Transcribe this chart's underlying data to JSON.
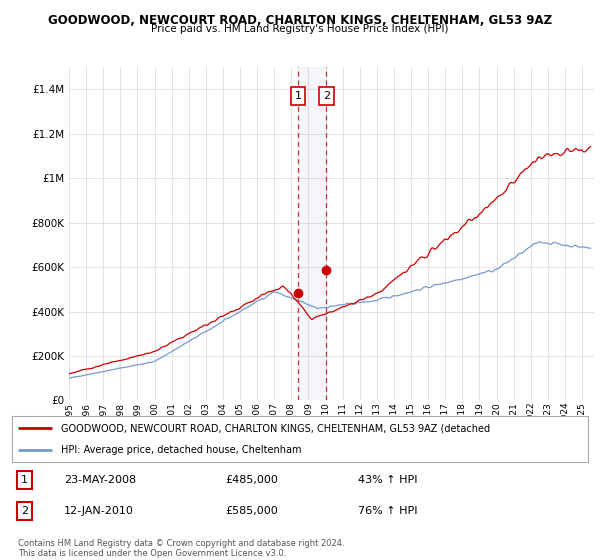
{
  "title": "GOODWOOD, NEWCOURT ROAD, CHARLTON KINGS, CHELTENHAM, GL53 9AZ",
  "subtitle": "Price paid vs. HM Land Registry's House Price Index (HPI)",
  "ylim": [
    0,
    1500000
  ],
  "yticks": [
    0,
    200000,
    400000,
    600000,
    800000,
    1000000,
    1200000,
    1400000
  ],
  "ytick_labels": [
    "£0",
    "£200K",
    "£400K",
    "£600K",
    "£800K",
    "£1M",
    "£1.2M",
    "£1.4M"
  ],
  "x_start_year": 1995,
  "x_end_year": 2025,
  "background_color": "#ffffff",
  "plot_bg_color": "#ffffff",
  "grid_color": "#dddddd",
  "red_line_color": "#cc0000",
  "blue_line_color": "#7799cc",
  "sale1_price": 485000,
  "sale2_price": 585000,
  "sale1_x": 2008.39,
  "sale2_x": 2010.04,
  "sale1_date": "23-MAY-2008",
  "sale2_date": "12-JAN-2010",
  "sale1_pct": "43% ↑ HPI",
  "sale2_pct": "76% ↑ HPI",
  "legend_red": "GOODWOOD, NEWCOURT ROAD, CHARLTON KINGS, CHELTENHAM, GL53 9AZ (detached",
  "legend_blue": "HPI: Average price, detached house, Cheltenham",
  "footer1": "Contains HM Land Registry data © Crown copyright and database right 2024.",
  "footer2": "This data is licensed under the Open Government Licence v3.0.",
  "hpi_seed": 42,
  "red_seed": 123
}
